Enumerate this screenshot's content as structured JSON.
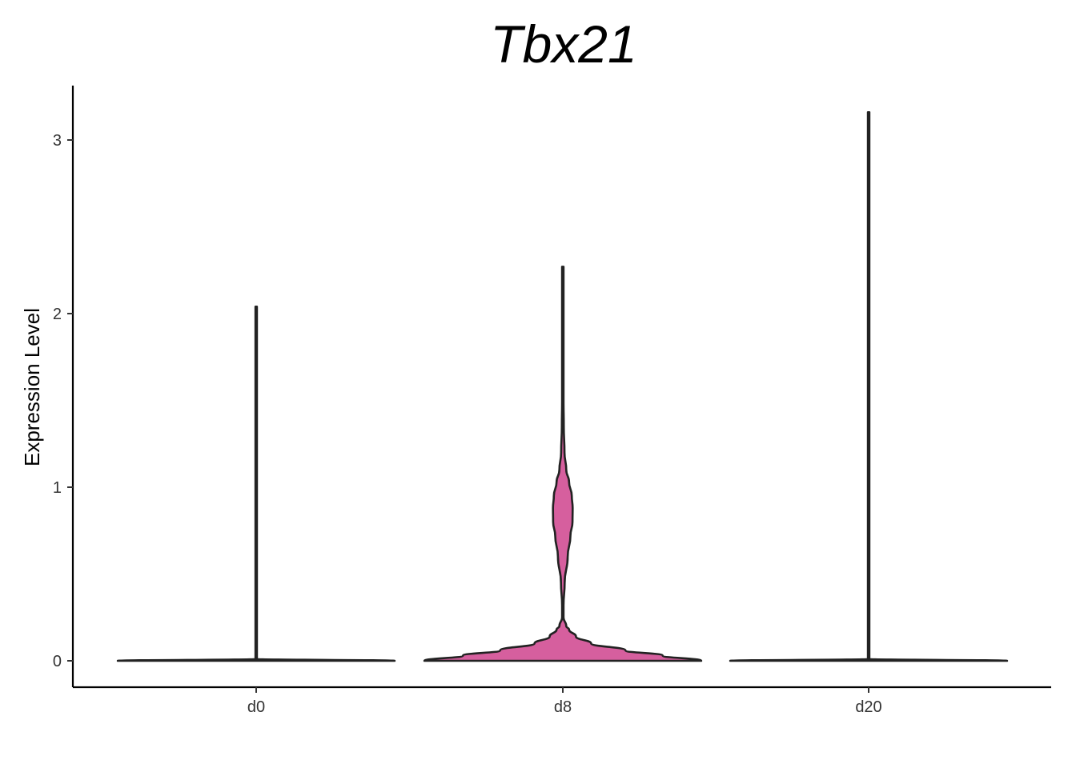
{
  "chart_data": {
    "type": "violin",
    "title": "Tbx21",
    "xlabel": "",
    "ylabel": "Expression Level",
    "categories": [
      "d0",
      "d8",
      "d20"
    ],
    "ylim": [
      -0.15,
      3.3
    ],
    "yticks": [
      0,
      1,
      2,
      3
    ],
    "grid": false,
    "legend": "none",
    "series": [
      {
        "category": "d0",
        "color": "#f8766d",
        "max": 2.04,
        "density": [
          [
            0,
            1.0
          ],
          [
            0.01,
            0.0
          ],
          [
            2.04,
            0.0
          ]
        ]
      },
      {
        "category": "d8",
        "color": "#d65f9e",
        "max": 2.27,
        "density": [
          [
            0,
            1.0
          ],
          [
            0.03,
            0.72
          ],
          [
            0.06,
            0.45
          ],
          [
            0.1,
            0.2
          ],
          [
            0.14,
            0.09
          ],
          [
            0.18,
            0.04
          ],
          [
            0.2,
            0.02
          ],
          [
            0.25,
            0.0
          ],
          [
            0.32,
            0.0
          ],
          [
            0.45,
            0.008
          ],
          [
            0.6,
            0.03
          ],
          [
            0.72,
            0.05
          ],
          [
            0.8,
            0.065
          ],
          [
            0.88,
            0.066
          ],
          [
            0.95,
            0.06
          ],
          [
            1.03,
            0.04
          ],
          [
            1.1,
            0.02
          ],
          [
            1.2,
            0.007
          ],
          [
            1.35,
            0.002
          ],
          [
            1.5,
            0.0
          ],
          [
            1.7,
            0.0
          ],
          [
            2.0,
            0.0
          ],
          [
            2.27,
            0.0
          ]
        ]
      },
      {
        "category": "d20",
        "color": "#00bfc4",
        "max": 3.16,
        "density": [
          [
            0,
            1.0
          ],
          [
            0.01,
            0.0
          ],
          [
            3.16,
            0.0
          ]
        ]
      }
    ]
  }
}
